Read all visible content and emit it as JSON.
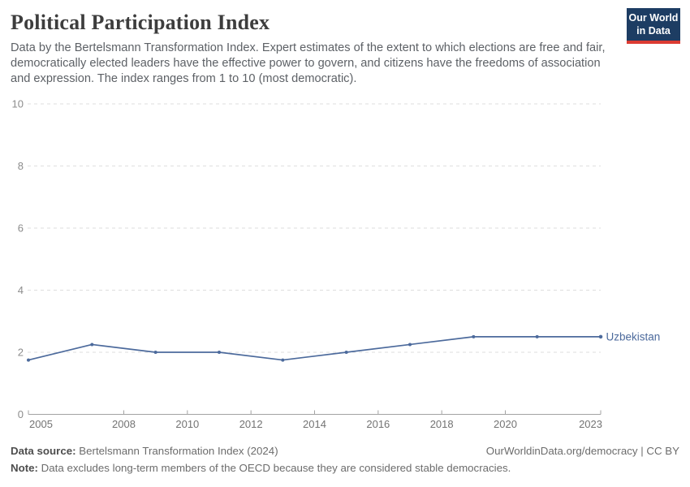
{
  "header": {
    "title": "Political Participation Index",
    "subtitle": "Data by the Bertelsmann Transformation Index. Expert estimates of the extent to which elections are free and fair, democratically elected leaders have the effective power to govern, and citizens have the freedoms of association and expression. The index ranges from 1 to 10 (most democratic)."
  },
  "logo": {
    "line1": "Our World",
    "line2": "in Data",
    "bg_color": "#1d3d63",
    "stripe_color": "#dc3b32"
  },
  "chart_data": {
    "type": "line",
    "title": "Political Participation Index",
    "x": [
      2005,
      2007,
      2009,
      2011,
      2013,
      2015,
      2017,
      2019,
      2021,
      2023
    ],
    "series": [
      {
        "name": "Uzbekistan",
        "color": "#4c6a9c",
        "values": [
          1.75,
          2.25,
          2.0,
          2.0,
          1.75,
          2.0,
          2.25,
          2.5,
          2.5,
          2.5
        ]
      }
    ],
    "xlim": [
      2005,
      2023
    ],
    "ylim": [
      0,
      10
    ],
    "xticks": [
      2005,
      2008,
      2010,
      2012,
      2014,
      2016,
      2018,
      2020,
      2023
    ],
    "yticks": [
      0,
      2,
      4,
      6,
      8,
      10
    ],
    "grid": "horizontal-dashed",
    "legend_position": "end-of-line-label",
    "colors": {
      "gridline": "#dedede",
      "axis": "#a3a3a3",
      "ytick_label": "#8c8c8c",
      "xtick_label": "#737373"
    }
  },
  "footer": {
    "source_label": "Data source:",
    "source_text": " Bertelsmann Transformation Index (2024)",
    "link_text": "OurWorldinData.org/democracy | CC BY",
    "note_label": "Note:",
    "note_text": " Data excludes long-term members of the OECD because they are considered stable democracies."
  }
}
